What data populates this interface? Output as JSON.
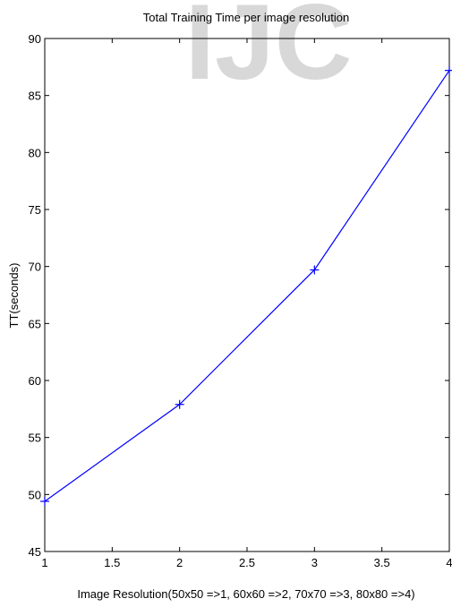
{
  "chart_data": {
    "type": "line",
    "title": "Total Training Time per image resolution",
    "xlabel": "Image Resolution(50x50 =>1, 60x60 =>2, 70x70 =>3, 80x80 =>4)",
    "ylabel": "TT(seconds)",
    "xlim": [
      1,
      4
    ],
    "ylim": [
      45,
      90
    ],
    "x_ticks": [
      "1",
      "1.5",
      "2",
      "2.5",
      "3",
      "3.5",
      "4"
    ],
    "y_ticks": [
      "45",
      "50",
      "55",
      "60",
      "65",
      "70",
      "75",
      "80",
      "85",
      "90"
    ],
    "grid": false,
    "legend": "none",
    "series": [
      {
        "x": [
          1,
          2,
          3,
          4
        ],
        "values": [
          49.4,
          57.9,
          69.7,
          87.2
        ],
        "color": "#0000ff",
        "marker": "plus"
      }
    ],
    "watermark_text": "IJC",
    "watermark_color": "#d8d8d8"
  }
}
